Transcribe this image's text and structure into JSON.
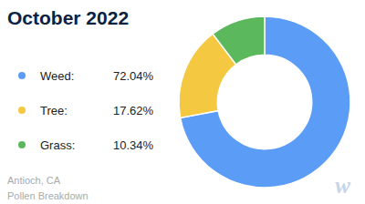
{
  "chart_data": {
    "type": "pie",
    "title": "October 2022",
    "categories": [
      "Weed:",
      "Tree:",
      "Grass:"
    ],
    "values": [
      72.04,
      17.62,
      10.34
    ],
    "value_labels": [
      "72.04%",
      "17.62%",
      "10.34%"
    ],
    "colors": [
      "#5b9cf6",
      "#f5c842",
      "#5cb85c"
    ],
    "legend": "left",
    "annotations": [
      "Antioch, CA",
      "Pollen Breakdown",
      "w"
    ]
  }
}
